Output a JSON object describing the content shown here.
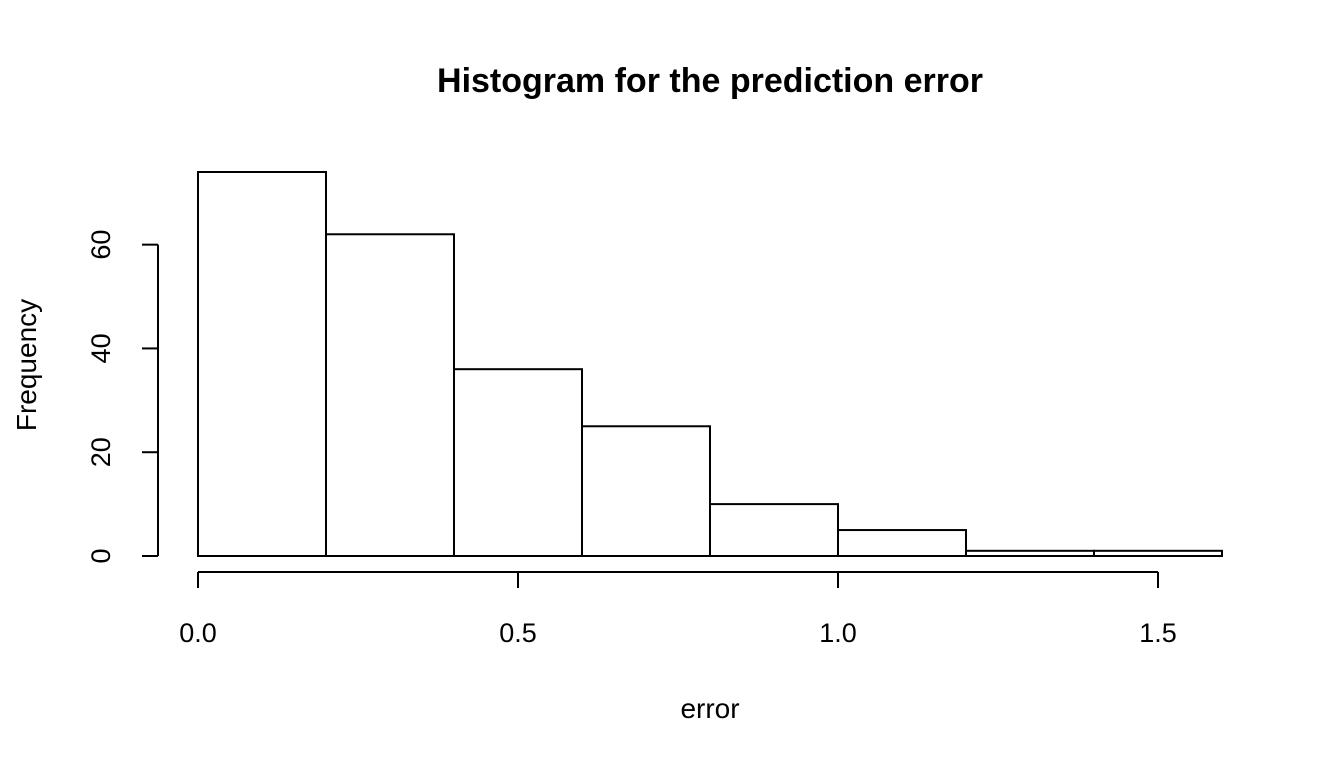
{
  "chart_data": {
    "type": "bar",
    "subtype": "histogram",
    "title": "Histogram for the prediction error",
    "xlabel": "error",
    "ylabel": "Frequency",
    "bins": [
      {
        "start": 0.0,
        "end": 0.2,
        "count": 74
      },
      {
        "start": 0.2,
        "end": 0.4,
        "count": 62
      },
      {
        "start": 0.4,
        "end": 0.6,
        "count": 36
      },
      {
        "start": 0.6,
        "end": 0.8,
        "count": 25
      },
      {
        "start": 0.8,
        "end": 1.0,
        "count": 10
      },
      {
        "start": 1.0,
        "end": 1.2,
        "count": 5
      },
      {
        "start": 1.2,
        "end": 1.4,
        "count": 1
      },
      {
        "start": 1.4,
        "end": 1.6,
        "count": 1
      }
    ],
    "xlim": [
      0.0,
      1.6
    ],
    "ylim": [
      0,
      74
    ],
    "x_ticks": [
      0.0,
      0.5,
      1.0,
      1.5
    ],
    "x_tick_labels": [
      "0.0",
      "0.5",
      "1.0",
      "1.5"
    ],
    "y_ticks": [
      0,
      20,
      40,
      60
    ],
    "y_tick_labels": [
      "0",
      "20",
      "40",
      "60"
    ],
    "grid": false,
    "bar_fill": "#ffffff",
    "bar_stroke": "#000000"
  }
}
